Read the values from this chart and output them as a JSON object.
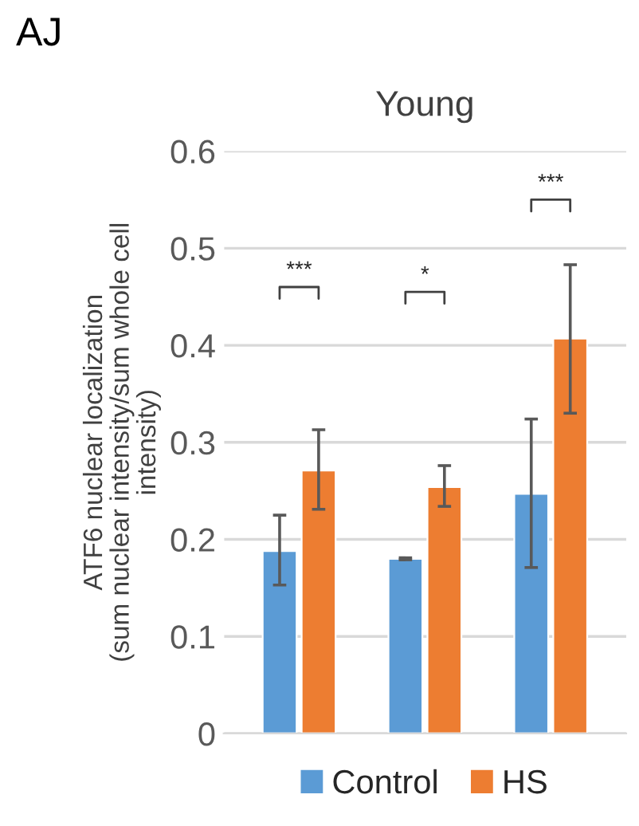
{
  "chart_data": {
    "type": "bar",
    "title": "Young",
    "ylabel": "ATF6 nuclear localization\n(sum nuclear intensity/sum whole cell\nintensity)",
    "categories": [
      null,
      null,
      null
    ],
    "series": [
      {
        "name": "Control",
        "color": "#5b9bd5",
        "values": [
          0.188,
          0.18,
          0.247
        ],
        "errors": [
          [
            0.153,
            0.225
          ],
          [
            0.179,
            0.181
          ],
          [
            0.171,
            0.324
          ]
        ]
      },
      {
        "name": "HS",
        "color": "#ed7d31",
        "values": [
          0.271,
          0.254,
          0.407
        ],
        "errors": [
          [
            0.231,
            0.313
          ],
          [
            0.234,
            0.276
          ],
          [
            0.33,
            0.483
          ]
        ]
      }
    ],
    "ylim": [
      0,
      0.6
    ],
    "yticks": [
      {
        "value": 0,
        "label": "0"
      },
      {
        "value": 0.1,
        "label": "0.1"
      },
      {
        "value": 0.2,
        "label": "0.2"
      },
      {
        "value": 0.3,
        "label": "0.3"
      },
      {
        "value": 0.4,
        "label": "0.4"
      },
      {
        "value": 0.5,
        "label": "0.5"
      },
      {
        "value": 0.6,
        "label": "0.6"
      }
    ],
    "grid": "y",
    "legend": "bottom",
    "annotations": [
      "AJ",
      "***",
      "*",
      "***"
    ]
  }
}
